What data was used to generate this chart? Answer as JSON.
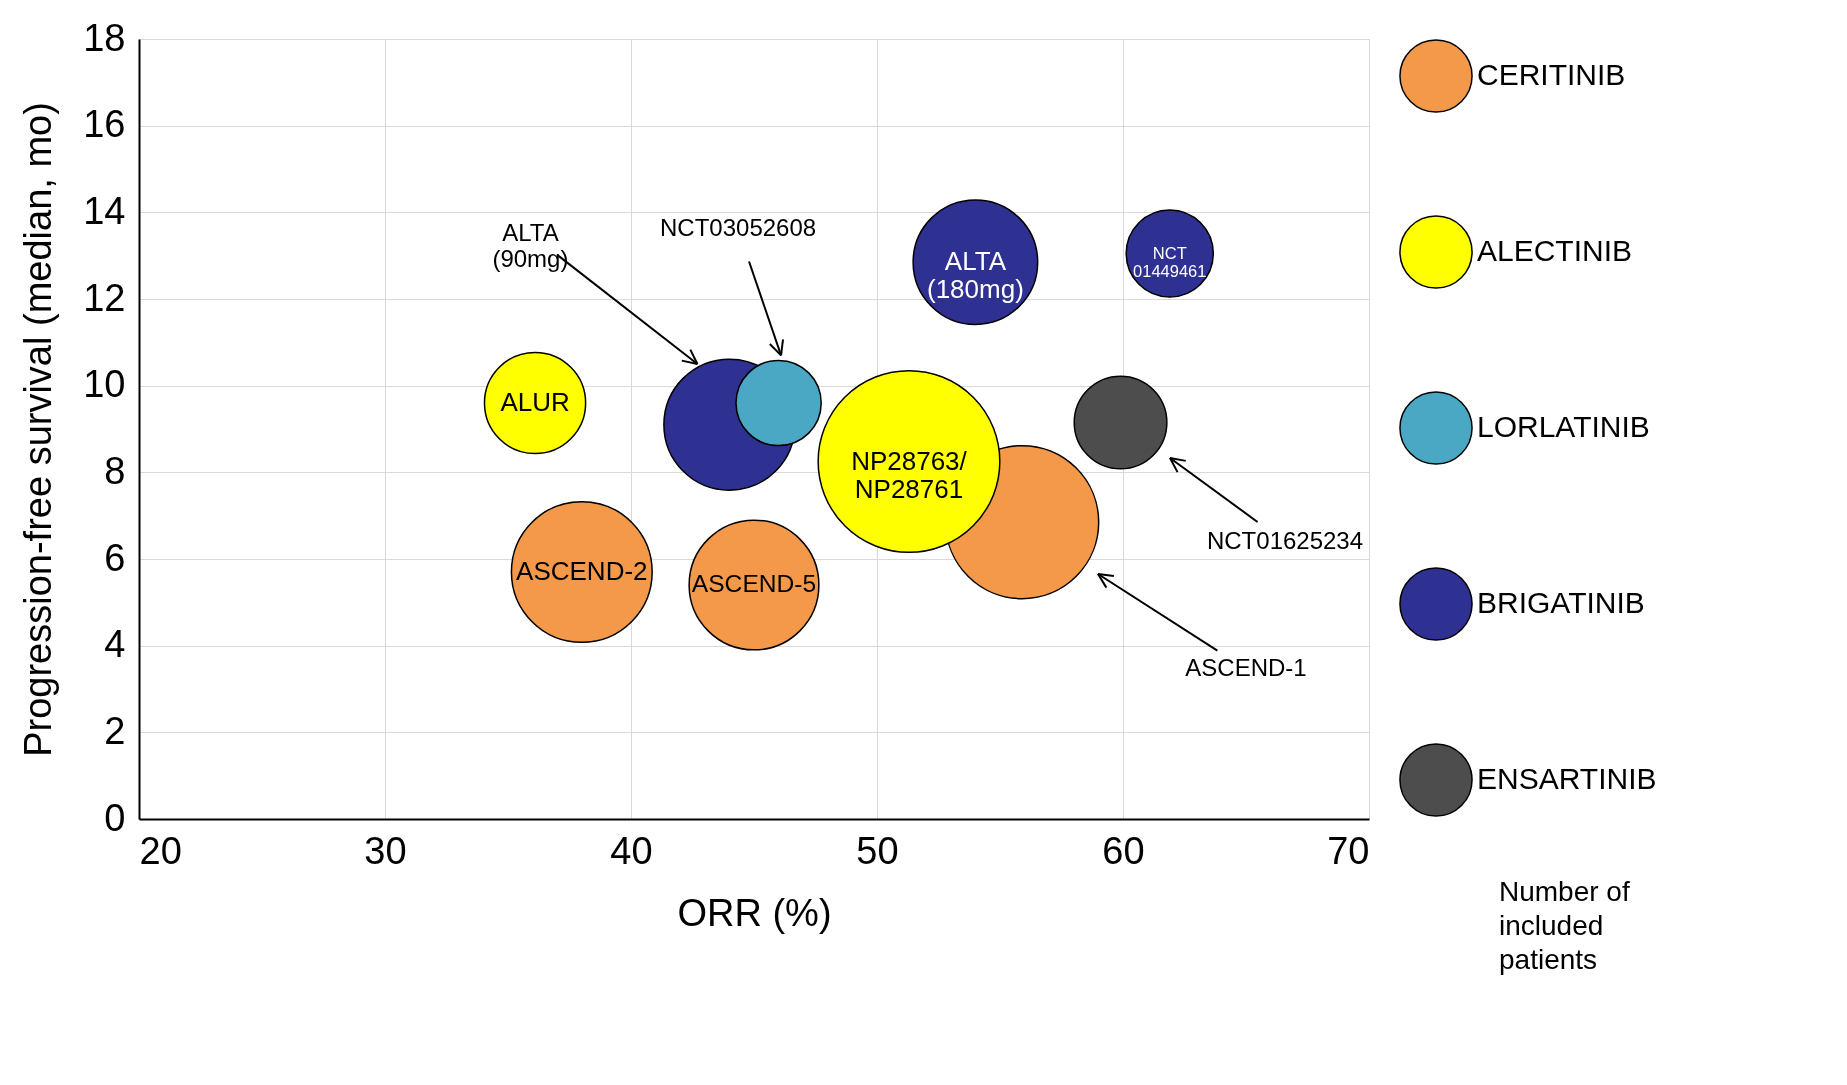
{
  "chart_data": {
    "type": "bubble",
    "xlabel": "ORR (%)",
    "ylabel": "Progression-free survival (median, mo)",
    "xlim": [
      20,
      70
    ],
    "xticks": [
      20,
      30,
      40,
      50,
      60,
      70
    ],
    "ylim": [
      0,
      18
    ],
    "yticks": [
      0,
      2,
      4,
      6,
      8,
      10,
      12,
      14,
      16,
      18
    ],
    "grid": true,
    "legend": "right",
    "series": [
      {
        "name": "CERITINIB",
        "color": "#f4994a",
        "x": [
          38.0,
          45.0,
          55.9
        ],
        "values": [
          5.7,
          5.4,
          6.85
        ],
        "sizes": [
          0.6,
          0.51,
          0.71
        ]
      },
      {
        "name": "ALECTINIB",
        "color": "#ffff00",
        "x": [
          36.1,
          51.3
        ],
        "values": [
          9.6,
          8.25
        ],
        "sizes": [
          0.31,
          1
        ]
      },
      {
        "name": "LORLATINIB",
        "color": "#4aa8c4",
        "x": [
          46.0
        ],
        "values": [
          9.6
        ],
        "sizes": [
          0.22
        ]
      },
      {
        "name": "BRIGATINIB",
        "color": "#2e3192",
        "x": [
          44.0,
          54.0,
          61.9
        ],
        "values": [
          9.1,
          12.85,
          13.05
        ],
        "sizes": [
          0.52,
          0.47,
          0.23
        ]
      },
      {
        "name": "ENSARTINIB",
        "color": "#4d4d4d",
        "x": [
          59.9
        ],
        "values": [
          9.15
        ],
        "sizes": [
          0.26
        ]
      }
    ],
    "annotations": [
      {
        "text": "ASCEND-2",
        "x": 38.0,
        "y": 5.7
      },
      {
        "text": "ASCEND-5",
        "x": 45.0,
        "y": 5.4
      },
      "ASCEND-1",
      {
        "text": "ALUR",
        "x": 36.1,
        "y": 9.6
      },
      {
        "text": "NP28763/\nNP28761",
        "x": 51.3,
        "y": 8.25
      },
      {
        "text": "NCT03052608",
        "x": 46.1,
        "y": 10.7
      },
      {
        "text": "ALTA\n(90mg)",
        "x": 42.7,
        "y": 10.5
      },
      {
        "text": "ALTA\n(180mg)",
        "x": 54.0,
        "y": 12.85
      },
      {
        "text": "NCT\n01449461",
        "x": 61.9,
        "y": 13.05
      },
      "NCT01625234",
      "Number of included patients"
    ]
  }
}
